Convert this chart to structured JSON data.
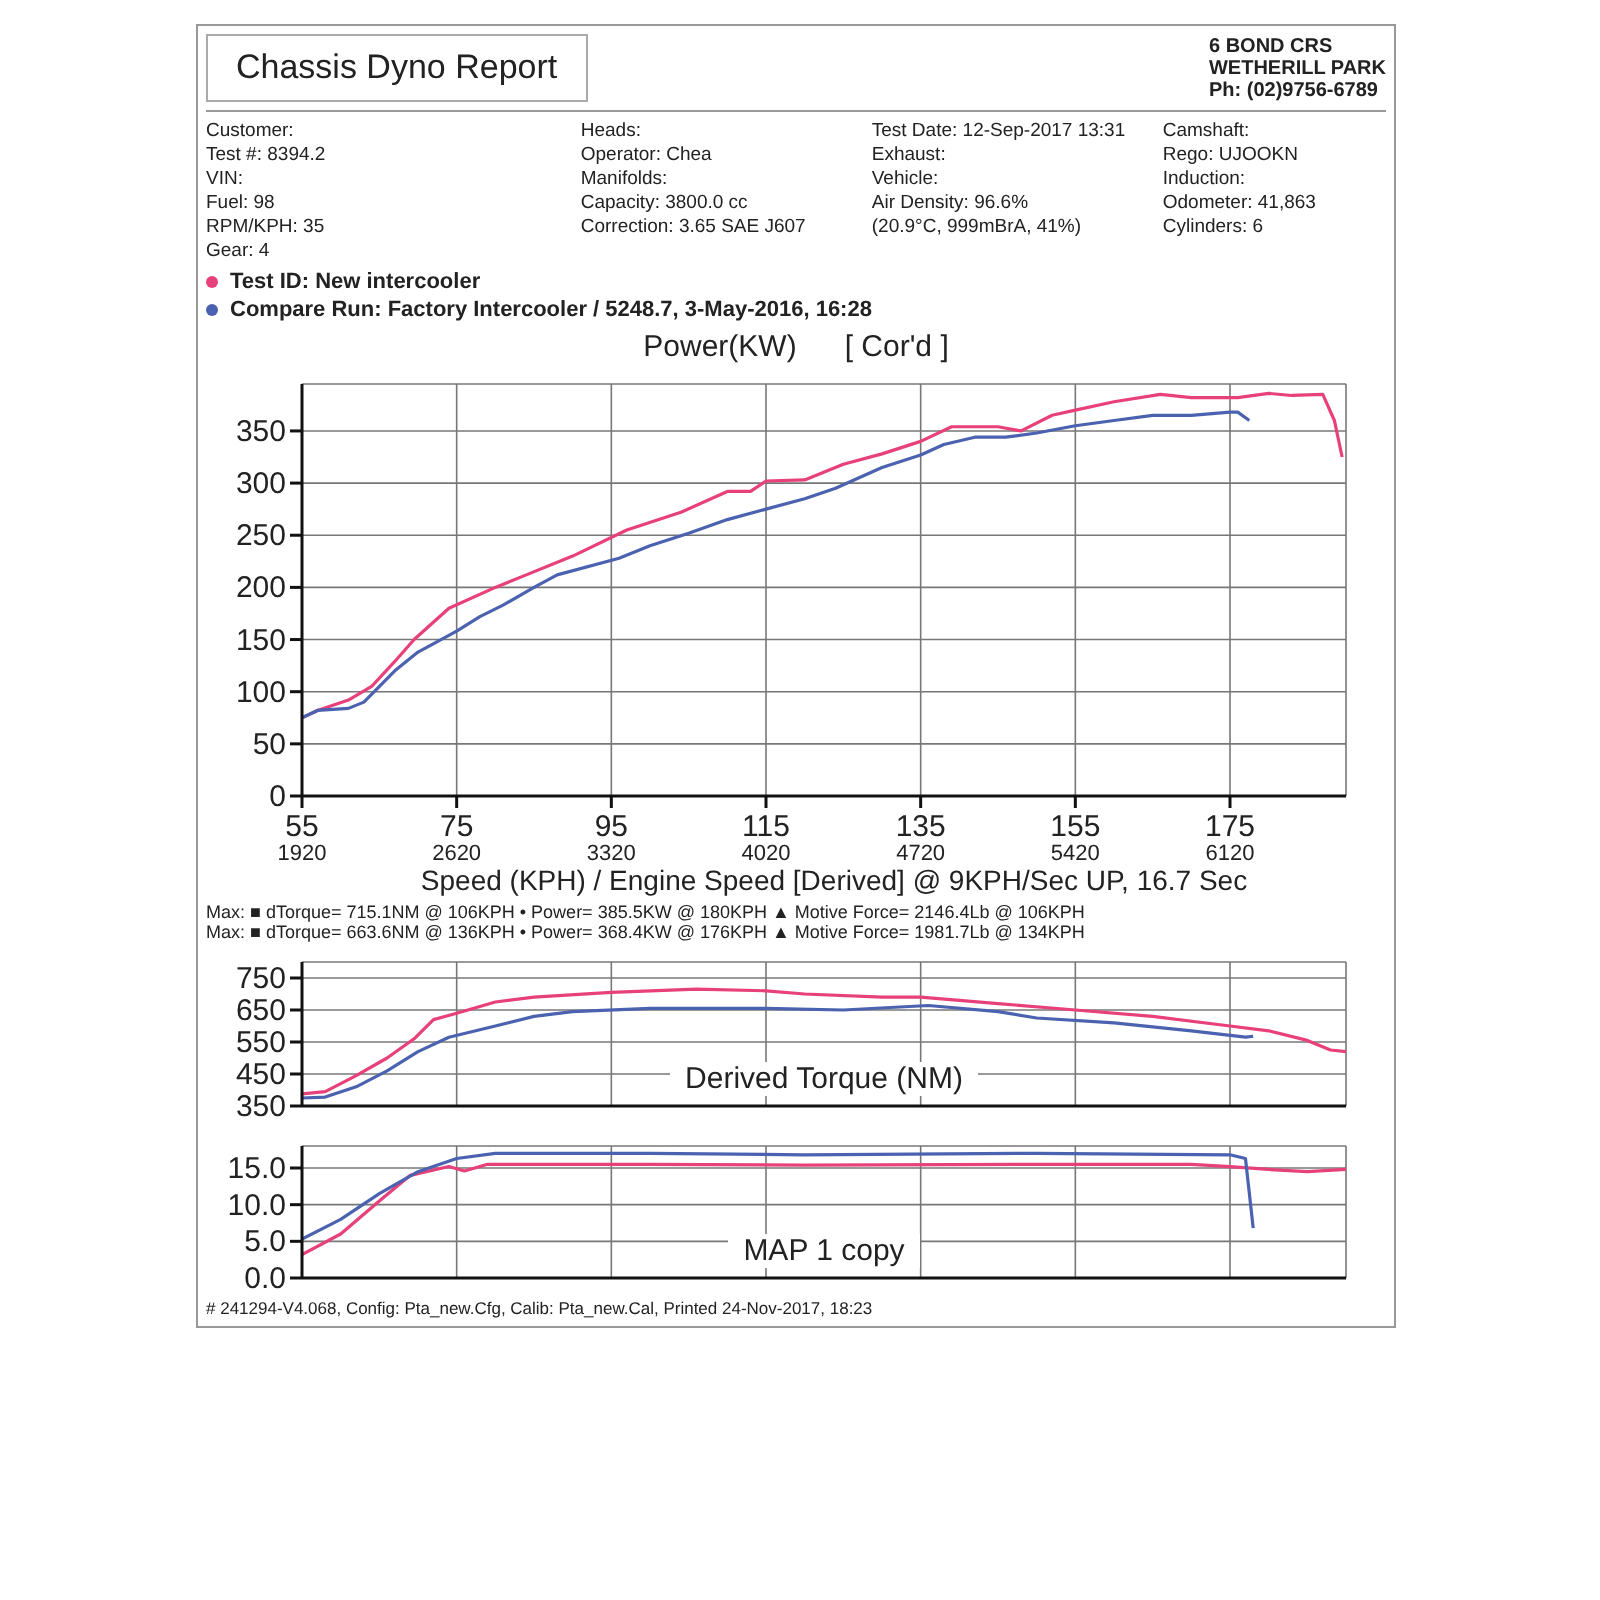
{
  "chart_data": [
    {
      "type": "line",
      "title": "Power(KW)",
      "subtitle": "[ Cor'd ]",
      "xlabel": "Speed (KPH) / Engine Speed [Derived] @ 9KPH/Sec UP, 16.7 Sec",
      "annotations": [
        "Chassis Dyno Report",
        "6 BOND CRS",
        "WETHERILL PARK",
        "Ph: (02)9756-6789",
        "Customer:",
        "Heads:",
        "Test Date: 12-Sep-2017 13:31",
        "Camshaft:",
        "Test #: 8394.2",
        "Operator: Chea",
        "Exhaust:",
        "Rego: UJOOKN",
        "VIN:",
        "Manifolds:",
        "Vehicle:",
        "Induction:",
        "Fuel: 98",
        "Capacity: 3800.0 cc",
        "Air Density: 96.6%",
        "Odometer: 41,863",
        "RPM/KPH: 35",
        "Correction: 3.65 SAE J607",
        "(20.9°C, 999mBrA, 41%)",
        "Cylinders: 6",
        "Gear: 4"
      ],
      "xlim": [
        55,
        190
      ],
      "xticks": [
        55,
        75,
        95,
        115,
        135,
        155,
        175
      ],
      "x2lim": [
        1920,
        6645
      ],
      "x2ticks": [
        1920,
        2620,
        3320,
        4020,
        4720,
        5420,
        6120
      ],
      "ylim": [
        0,
        395
      ],
      "yticks": [
        0,
        50,
        100,
        150,
        200,
        250,
        300,
        350
      ],
      "grid": true,
      "legend": "top",
      "line_style": "solid",
      "series": [
        {
          "name": "Test ID: New intercooler",
          "color": "#e8407a",
          "x": [
            55,
            57,
            61,
            64,
            67,
            69.5,
            74,
            80,
            84,
            90,
            97,
            104,
            110,
            113,
            115,
            120,
            125,
            130,
            135,
            139,
            145,
            148,
            152,
            155,
            160,
            166,
            170,
            176,
            180,
            183,
            187,
            188.5,
            189.5
          ],
          "values": [
            75,
            82,
            92,
            105,
            129,
            150,
            180,
            200,
            212,
            230,
            255,
            272,
            292,
            292,
            302,
            303,
            318,
            328,
            340,
            354,
            354,
            350,
            365,
            370,
            378,
            385,
            382,
            382,
            386,
            384,
            385,
            360,
            325
          ]
        },
        {
          "name": "Compare Run: Factory Intercooler / 5248.7,  3-May-2016,  16:28",
          "color": "#4a62b0",
          "x": [
            55,
            57,
            61,
            63,
            67,
            70,
            75,
            78,
            81,
            85,
            88,
            96,
            100,
            105,
            110,
            115,
            120,
            124,
            130,
            135,
            138,
            142,
            146,
            150,
            155,
            160,
            165,
            170,
            175,
            176,
            177.5
          ],
          "values": [
            75,
            82,
            84,
            90,
            120,
            138,
            158,
            172,
            183,
            200,
            212,
            228,
            240,
            252,
            265,
            275,
            285,
            295,
            315,
            327,
            337,
            344,
            344,
            348,
            355,
            360,
            365,
            365,
            368,
            368,
            360
          ]
        }
      ]
    },
    {
      "type": "line",
      "title": "Derived Torque (NM)",
      "annotations": [
        "Max:  ■ dTorque= 715.1NM @ 106KPH  • Power= 385.5KW @ 180KPH  ▲ Motive Force= 2146.4Lb @ 106KPH",
        "Max:  ■ dTorque= 663.6NM @ 136KPH  • Power= 368.4KW @ 176KPH  ▲ Motive Force= 1981.7Lb @ 134KPH"
      ],
      "xlim": [
        55,
        190
      ],
      "xticks": [
        55,
        75,
        95,
        115,
        135,
        155,
        175
      ],
      "tick_labels": "y",
      "ylim": [
        350,
        800
      ],
      "yticks": [
        350,
        450,
        550,
        650,
        750
      ],
      "grid": true,
      "line_style": "solid",
      "series": [
        {
          "color": "#e8407a",
          "x": [
            55,
            58,
            62,
            66,
            69.5,
            72,
            75,
            80,
            85,
            95,
            106,
            115,
            120,
            130,
            135,
            145,
            155,
            165,
            175,
            180,
            185,
            188,
            190
          ],
          "values": [
            388,
            395,
            445,
            500,
            560,
            620,
            640,
            675,
            690,
            705,
            715,
            710,
            700,
            690,
            690,
            670,
            650,
            630,
            600,
            585,
            555,
            525,
            520
          ]
        },
        {
          "color": "#4a62b0",
          "x": [
            55,
            58,
            62,
            66,
            70,
            74,
            80,
            85,
            90,
            100,
            115,
            125,
            136,
            145,
            150,
            160,
            170,
            177,
            178
          ],
          "values": [
            375,
            378,
            410,
            460,
            520,
            565,
            600,
            630,
            645,
            655,
            655,
            650,
            664,
            645,
            625,
            610,
            585,
            565,
            568
          ]
        }
      ]
    },
    {
      "type": "line",
      "title": "MAP 1 copy",
      "annotations": [
        "# 241294-V4.068, Config: Pta_new.Cfg, Calib: Pta_new.Cal, Printed 24-Nov-2017, 18:23"
      ],
      "xlim": [
        55,
        190
      ],
      "xticks": [
        55,
        75,
        95,
        115,
        135,
        155,
        175
      ],
      "tick_labels": "y",
      "ylim": [
        0,
        18
      ],
      "yticks": [
        {
          "value": 0,
          "label": "0.0"
        },
        {
          "value": 5,
          "label": "5.0"
        },
        {
          "value": 10,
          "label": "10.0"
        },
        {
          "value": 15,
          "label": "15.0"
        }
      ],
      "grid": true,
      "line_style": "solid",
      "series": [
        {
          "color": "#e8407a",
          "x": [
            55,
            60,
            65,
            69,
            74,
            76,
            79,
            100,
            120,
            150,
            170,
            175,
            180,
            185,
            190
          ],
          "values": [
            3.2,
            6,
            10.5,
            14,
            15.2,
            14.6,
            15.5,
            15.5,
            15.4,
            15.5,
            15.5,
            15.2,
            14.8,
            14.5,
            14.8
          ]
        },
        {
          "color": "#4a62b0",
          "x": [
            55,
            60,
            65,
            70,
            75,
            80,
            100,
            120,
            150,
            175,
            177,
            178
          ],
          "values": [
            5.3,
            8,
            11.5,
            14.5,
            16.3,
            17,
            17,
            16.8,
            17,
            16.8,
            16.3,
            6.8
          ]
        }
      ]
    }
  ]
}
